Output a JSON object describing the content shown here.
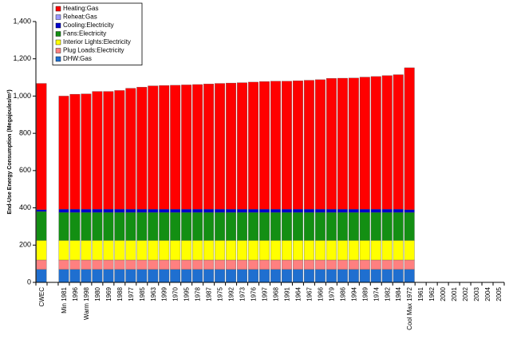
{
  "chart_data": {
    "type": "stacked-bar",
    "y_label": "End-Use Energy Consumption (Megajoules/m²)",
    "categories": [
      "CWEC",
      null,
      "Min 1981",
      "1996",
      "Warm 1998",
      "1980",
      "1969",
      "1988",
      "1977",
      "1985",
      "1963",
      "1999",
      "1970",
      "1995",
      "1978",
      "1987",
      "1975",
      "1992",
      "1973",
      "1976",
      "1997",
      "1968",
      "1991",
      "1964",
      "1967",
      "1966",
      "1979",
      "1986",
      "1994",
      "1989",
      "1974",
      "1982",
      "1984",
      "Cool Max 1972",
      "1961",
      "1962",
      "2000",
      "2001",
      "2002",
      "2003",
      "2004",
      "2005"
    ],
    "series": [
      {
        "name": "Heating:Gas",
        "color": "#ff0000",
        "values": [
          678,
          null,
          607,
          617,
          619,
          632,
          632,
          637,
          649,
          655,
          662,
          664,
          665,
          667,
          669,
          672,
          675,
          677,
          679,
          682,
          685,
          687,
          687,
          689,
          692,
          695,
          702,
          703,
          704,
          709,
          712,
          717,
          722,
          762,
          null,
          null,
          null,
          null,
          null,
          null,
          null,
          null
        ]
      },
      {
        "name": "Reheat:Gas",
        "color": "#9999ff",
        "values": [
          0,
          null,
          0,
          0,
          0,
          0,
          0,
          0,
          0,
          0,
          0,
          0,
          0,
          0,
          0,
          0,
          0,
          0,
          0,
          0,
          0,
          0,
          0,
          0,
          0,
          0,
          0,
          0,
          0,
          0,
          0,
          0,
          0,
          0,
          null,
          null,
          null,
          null,
          null,
          null,
          null,
          null
        ]
      },
      {
        "name": "Cooling:Electricity",
        "color": "#0000cc",
        "values": [
          10,
          null,
          18,
          18,
          18,
          18,
          18,
          18,
          18,
          18,
          18,
          18,
          18,
          18,
          18,
          18,
          18,
          18,
          18,
          18,
          18,
          18,
          18,
          18,
          18,
          18,
          18,
          18,
          18,
          18,
          18,
          18,
          18,
          15,
          null,
          null,
          null,
          null,
          null,
          null,
          null,
          null
        ]
      },
      {
        "name": "Fans:Electricity",
        "color": "#138f13",
        "values": [
          155,
          null,
          150,
          150,
          150,
          150,
          150,
          150,
          150,
          150,
          150,
          150,
          150,
          150,
          150,
          150,
          150,
          150,
          150,
          150,
          150,
          150,
          150,
          150,
          150,
          150,
          150,
          150,
          150,
          150,
          150,
          150,
          150,
          150,
          null,
          null,
          null,
          null,
          null,
          null,
          null,
          null
        ]
      },
      {
        "name": "Interior Lights:Electricity",
        "color": "#ffff00",
        "values": [
          105,
          null,
          105,
          105,
          105,
          105,
          105,
          105,
          105,
          105,
          105,
          105,
          105,
          105,
          105,
          105,
          105,
          105,
          105,
          105,
          105,
          105,
          105,
          105,
          105,
          105,
          105,
          105,
          105,
          105,
          105,
          105,
          105,
          105,
          null,
          null,
          null,
          null,
          null,
          null,
          null,
          null
        ]
      },
      {
        "name": "Plug Loads:Electricity",
        "color": "#ff8080",
        "values": [
          50,
          null,
          50,
          50,
          50,
          50,
          50,
          50,
          50,
          50,
          50,
          50,
          50,
          50,
          50,
          50,
          50,
          50,
          50,
          50,
          50,
          50,
          50,
          50,
          50,
          50,
          50,
          50,
          50,
          50,
          50,
          50,
          50,
          50,
          null,
          null,
          null,
          null,
          null,
          null,
          null,
          null
        ]
      },
      {
        "name": "DHW:Gas",
        "color": "#1f6fd0",
        "values": [
          70,
          null,
          70,
          70,
          70,
          70,
          70,
          70,
          70,
          70,
          70,
          70,
          70,
          70,
          70,
          70,
          70,
          70,
          70,
          70,
          70,
          70,
          70,
          70,
          70,
          70,
          70,
          70,
          70,
          70,
          70,
          70,
          70,
          70,
          null,
          null,
          null,
          null,
          null,
          null,
          null,
          null
        ]
      }
    ],
    "ylim": [
      0,
      1400
    ],
    "yticks": [
      0,
      200,
      400,
      600,
      800,
      {
        "value": 1000,
        "label": "1,000"
      },
      {
        "value": 1200,
        "label": "1,200"
      },
      {
        "value": 1400,
        "label": "1,400"
      }
    ]
  }
}
